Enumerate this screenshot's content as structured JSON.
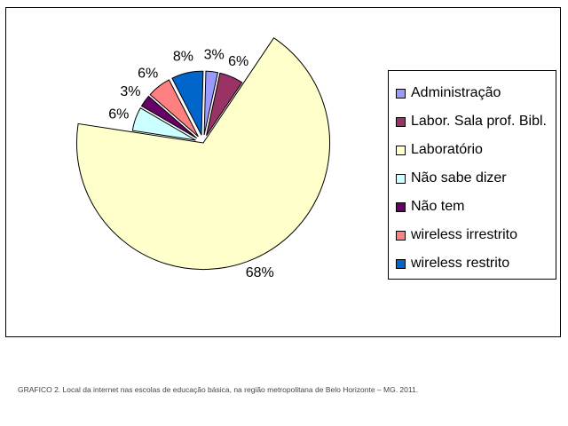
{
  "chart_data": {
    "type": "pie",
    "categories": [
      "Administração",
      "Labor. Sala prof. Bibl.",
      "Laboratório",
      "Não sabe dizer",
      "Não tem",
      "wireless irrestrito",
      "wireless restrito"
    ],
    "values": [
      3,
      6,
      68,
      6,
      3,
      6,
      8
    ],
    "labels": [
      "3%",
      "6%",
      "68%",
      "6%",
      "3%",
      "6%",
      "8%"
    ],
    "colors": [
      "#9999ff",
      "#993366",
      "#ffffcc",
      "#ccffff",
      "#660066",
      "#ff8080",
      "#0066cc"
    ],
    "exploded": true,
    "legend": "right",
    "title": ""
  },
  "caption": "GRAFICO 2. Local da internet nas escolas de educação básica, na região metropolitana de Belo Horizonte – MG. 2011."
}
